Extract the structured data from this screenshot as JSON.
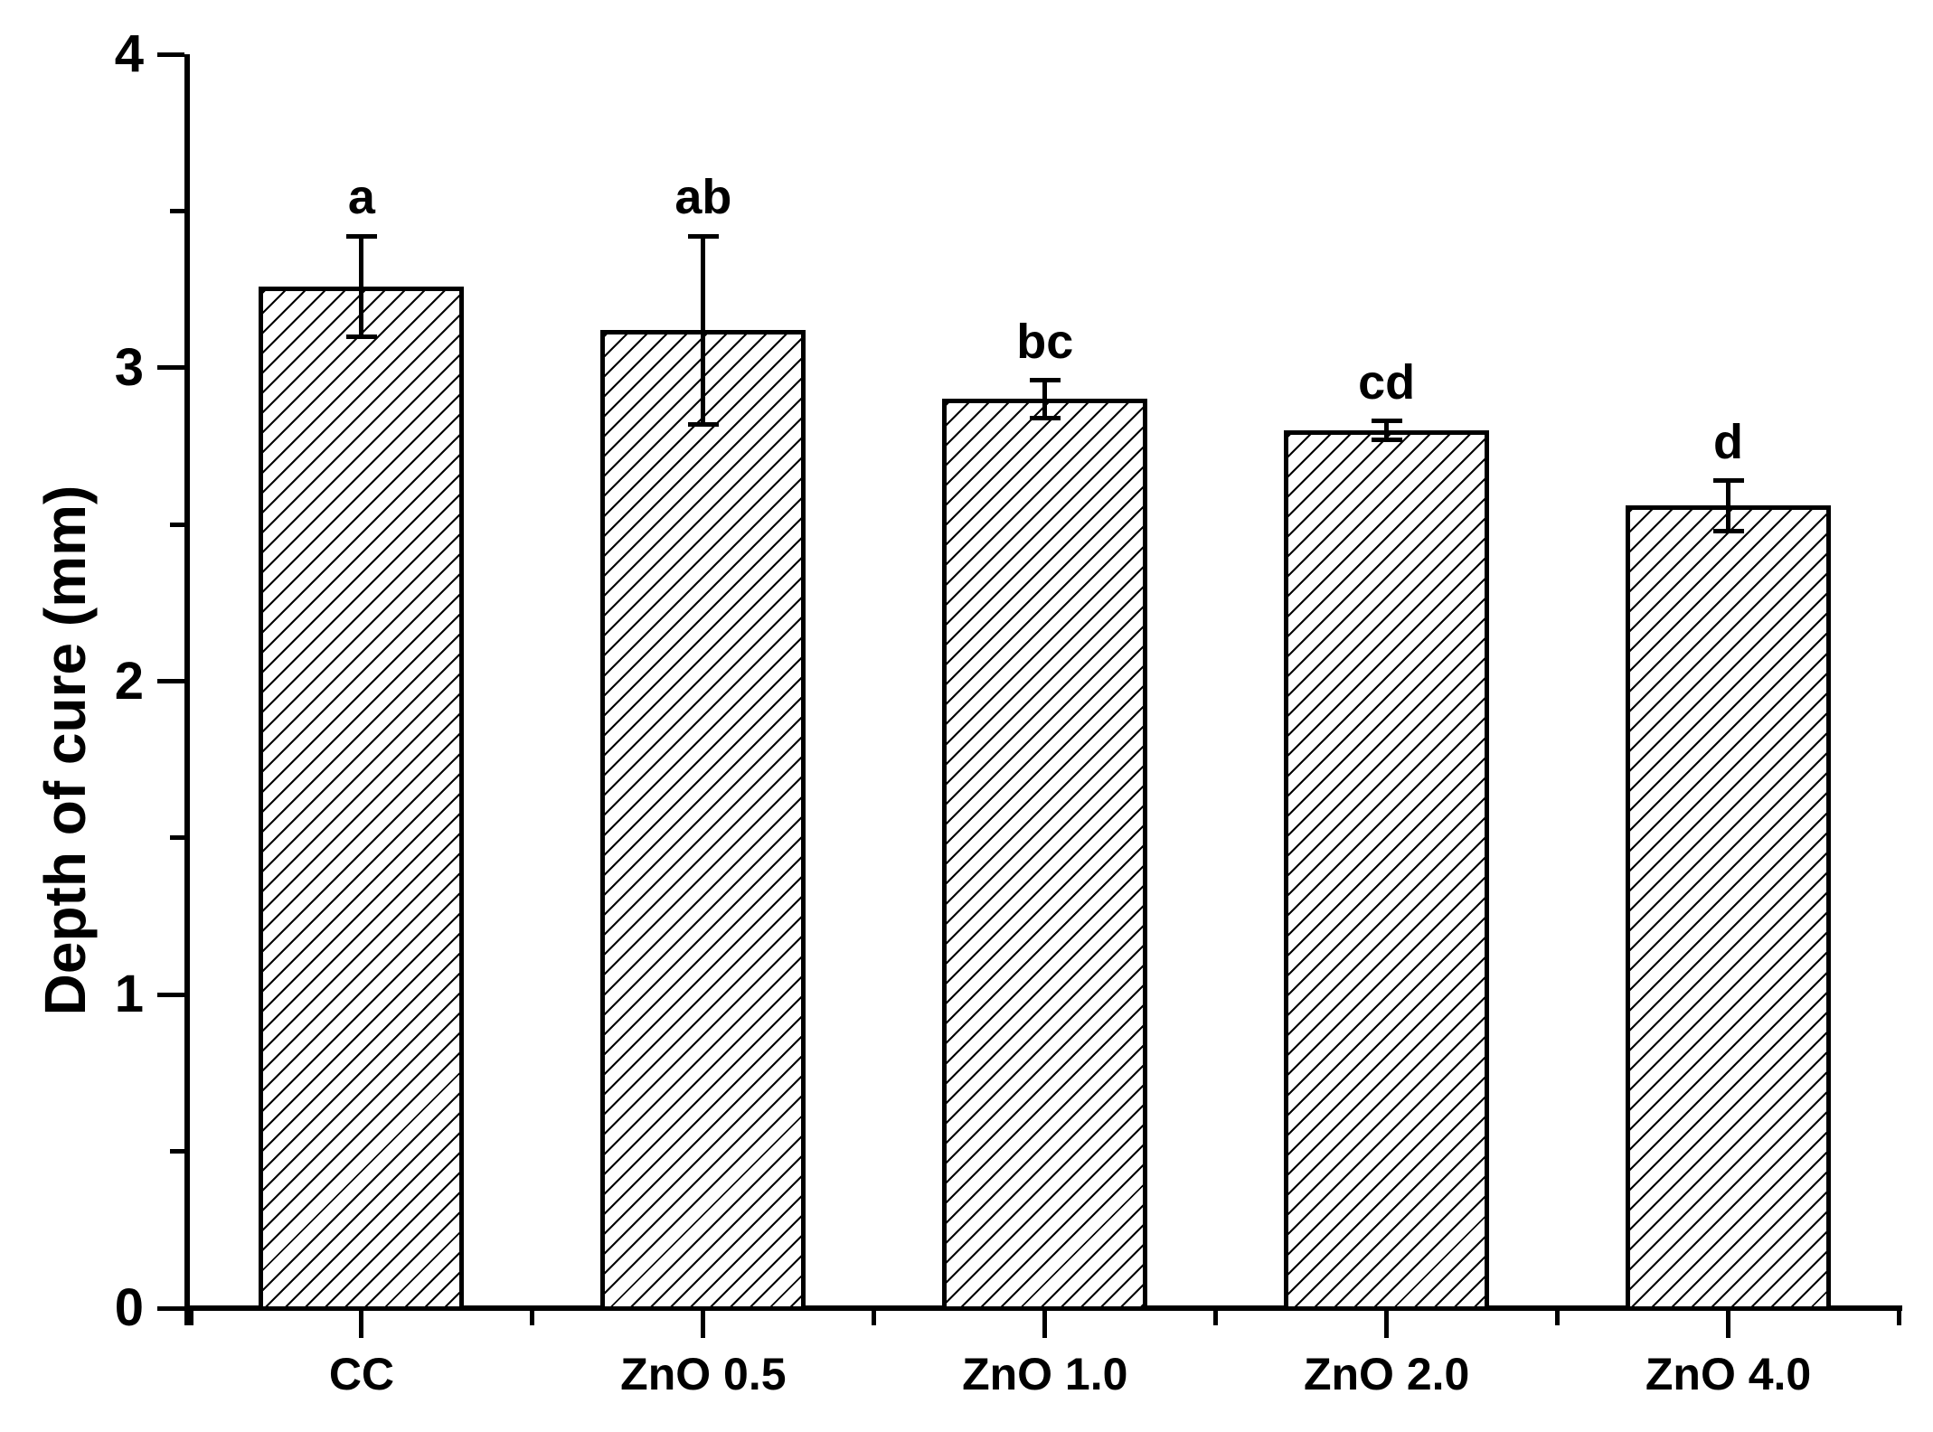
{
  "figure": {
    "background_color": "#ffffff",
    "foreground_color": "#000000"
  },
  "chart_data": {
    "type": "bar",
    "title": "",
    "xlabel": "",
    "ylabel": "Depth of cure (mm)",
    "ylim": [
      0,
      4
    ],
    "yticks_major": [
      0,
      1,
      2,
      3,
      4
    ],
    "yticks_minor": [
      0.5,
      1.5,
      2.5,
      3.5
    ],
    "grid": false,
    "legend": "none",
    "categories": [
      "CC",
      "ZnO 0.5",
      "ZnO 1.0",
      "ZnO 2.0",
      "ZnO 4.0"
    ],
    "series": [
      {
        "name": "Depth of cure",
        "values": [
          3.26,
          3.12,
          2.9,
          2.8,
          2.56
        ],
        "errors": [
          0.16,
          0.3,
          0.06,
          0.03,
          0.08
        ],
        "significance_letters": [
          "a",
          "ab",
          "bc",
          "cd",
          "d"
        ]
      }
    ],
    "bar_style": {
      "fill": "#ffffff",
      "hatch": "diagonal-forward-slash",
      "edge_color": "#000000"
    }
  }
}
